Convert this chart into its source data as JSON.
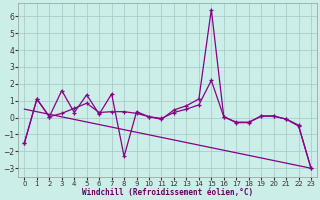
{
  "xlabel": "Windchill (Refroidissement éolien,°C)",
  "bg_color": "#cceee8",
  "grid_color": "#aacccc",
  "line_color": "#880088",
  "xlim": [
    -0.5,
    23.5
  ],
  "ylim": [
    -3.5,
    6.8
  ],
  "yticks": [
    -3,
    -2,
    -1,
    0,
    1,
    2,
    3,
    4,
    5,
    6
  ],
  "xticks": [
    0,
    1,
    2,
    3,
    4,
    5,
    6,
    7,
    8,
    9,
    10,
    11,
    12,
    13,
    14,
    15,
    16,
    17,
    18,
    19,
    20,
    21,
    22,
    23
  ],
  "series1_x": [
    0,
    1,
    2,
    3,
    4,
    5,
    6,
    7,
    8,
    9,
    10,
    11,
    12,
    13,
    14,
    15,
    16,
    17,
    18,
    19,
    20,
    21,
    22,
    23
  ],
  "series1_y": [
    -1.5,
    1.1,
    0.05,
    1.6,
    0.3,
    1.35,
    0.2,
    1.4,
    -2.3,
    0.35,
    0.05,
    -0.1,
    0.45,
    0.7,
    1.1,
    6.4,
    0.05,
    -0.3,
    -0.3,
    0.1,
    0.1,
    -0.1,
    -0.5,
    -3.0
  ],
  "series2_x": [
    0,
    1,
    2,
    3,
    4,
    5,
    6,
    7,
    8,
    9,
    10,
    11,
    12,
    13,
    14,
    15,
    16,
    17,
    18,
    19,
    20,
    21,
    22,
    23
  ],
  "series2_y": [
    -1.5,
    1.1,
    0.05,
    0.25,
    0.55,
    0.85,
    0.3,
    0.35,
    0.35,
    0.25,
    0.05,
    -0.05,
    0.3,
    0.5,
    0.75,
    2.2,
    0.05,
    -0.27,
    -0.27,
    0.08,
    0.08,
    -0.08,
    -0.45,
    -3.0
  ],
  "trend_x": [
    0,
    23
  ],
  "trend_y": [
    0.5,
    -3.0
  ]
}
